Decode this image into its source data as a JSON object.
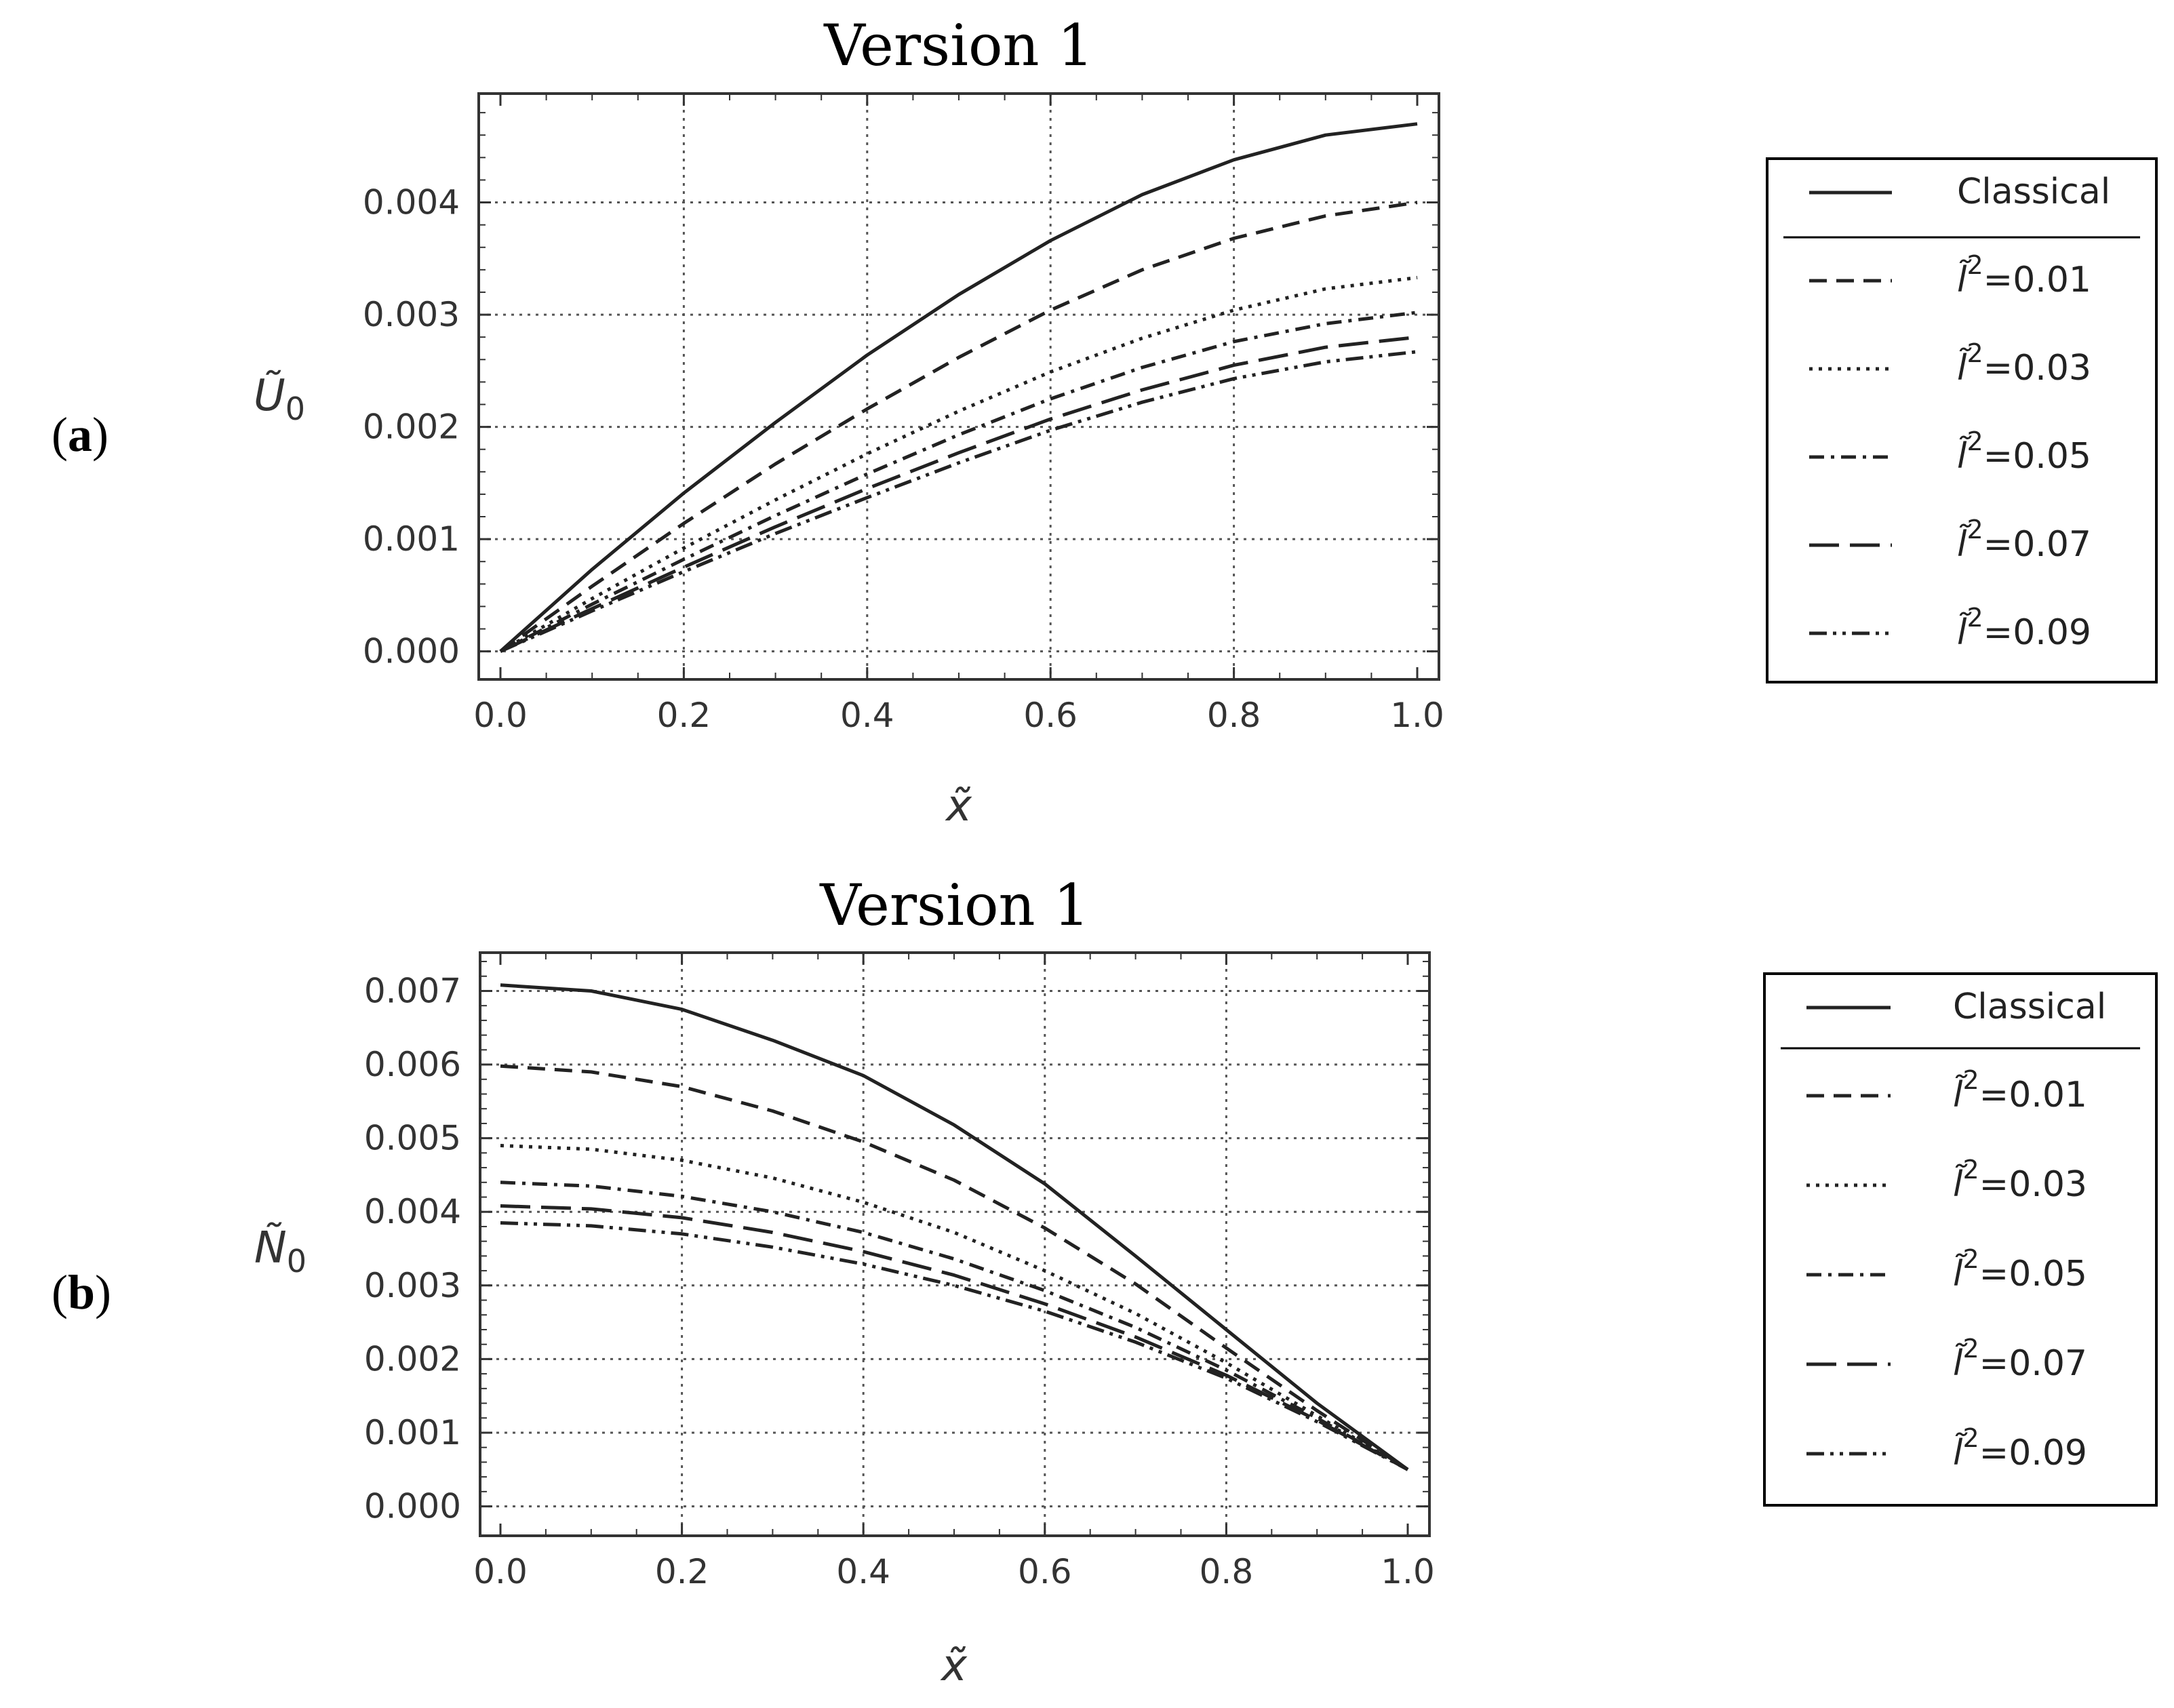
{
  "chart_data": [
    {
      "type": "line",
      "panel_label": "a",
      "title": "Version 1",
      "xlabel": "x̃",
      "ylabel": "Ũ",
      "ylabel_sub": "0",
      "xlim": [
        0.0,
        1.0
      ],
      "ylim": [
        -0.00025,
        0.00497
      ],
      "xticks": [
        "0.0",
        "0.2",
        "0.4",
        "0.6",
        "0.8",
        "1.0"
      ],
      "yticks": [
        "0.000",
        "0.001",
        "0.002",
        "0.003",
        "0.004"
      ],
      "grid": true,
      "legend_position": "right",
      "x": [
        0.0,
        0.1,
        0.2,
        0.3,
        0.4,
        0.5,
        0.6,
        0.7,
        0.8,
        0.9,
        1.0
      ],
      "series": [
        {
          "name": "Classical",
          "label_base": "Classical",
          "label_exp": "",
          "label_suffix": "",
          "style": "solid",
          "values": [
            0.0,
            0.00073,
            0.00141,
            0.00204,
            0.00264,
            0.00318,
            0.00366,
            0.00407,
            0.00438,
            0.0046,
            0.0047
          ]
        },
        {
          "name": "l̃²=0.01",
          "label_base": "l̃",
          "label_exp": "2",
          "label_suffix": "=0.01",
          "style": "dashed",
          "values": [
            0.0,
            0.00058,
            0.00114,
            0.00167,
            0.00216,
            0.00262,
            0.00304,
            0.0034,
            0.00368,
            0.00388,
            0.004
          ]
        },
        {
          "name": "l̃²=0.03",
          "label_base": "l̃",
          "label_exp": "2",
          "label_suffix": "=0.03",
          "style": "dotted",
          "values": [
            0.0,
            0.00047,
            0.00092,
            0.00135,
            0.00176,
            0.00214,
            0.00249,
            0.00279,
            0.00304,
            0.00323,
            0.00333
          ]
        },
        {
          "name": "l̃²=0.05",
          "label_base": "l̃",
          "label_exp": "2",
          "label_suffix": "=0.05",
          "style": "dashdot",
          "values": [
            0.0,
            0.00042,
            0.00082,
            0.00121,
            0.00158,
            0.00193,
            0.00225,
            0.00253,
            0.00276,
            0.00292,
            0.00302
          ]
        },
        {
          "name": "l̃²=0.07",
          "label_base": "l̃",
          "label_exp": "2",
          "label_suffix": "=0.07",
          "style": "longdash",
          "values": [
            0.0,
            0.00038,
            0.00075,
            0.00111,
            0.00145,
            0.00177,
            0.00207,
            0.00233,
            0.00255,
            0.00271,
            0.0028
          ]
        },
        {
          "name": "l̃²=0.09",
          "label_base": "l̃",
          "label_exp": "2",
          "label_suffix": "=0.09",
          "style": "dashdotdot",
          "values": [
            0.0,
            0.00036,
            0.00071,
            0.00105,
            0.00137,
            0.00168,
            0.00197,
            0.00222,
            0.00243,
            0.00258,
            0.00267
          ]
        }
      ]
    },
    {
      "type": "line",
      "panel_label": "b",
      "title": "Version 1",
      "xlabel": "x̃",
      "ylabel": "Ñ",
      "ylabel_sub": "0",
      "xlim": [
        0.0,
        1.0
      ],
      "ylim": [
        -0.0004,
        0.00752
      ],
      "xticks": [
        "0.0",
        "0.2",
        "0.4",
        "0.6",
        "0.8",
        "1.0"
      ],
      "yticks": [
        "0.000",
        "0.001",
        "0.002",
        "0.003",
        "0.004",
        "0.005",
        "0.006",
        "0.007"
      ],
      "grid": true,
      "legend_position": "right",
      "x": [
        0.0,
        0.1,
        0.2,
        0.3,
        0.4,
        0.5,
        0.6,
        0.7,
        0.8,
        0.9,
        1.0
      ],
      "series": [
        {
          "name": "Classical",
          "label_base": "Classical",
          "label_exp": "",
          "label_suffix": "",
          "style": "solid",
          "values": [
            0.00708,
            0.007,
            0.00675,
            0.00633,
            0.00585,
            0.00518,
            0.00438,
            0.0034,
            0.0024,
            0.0014,
            0.0005
          ]
        },
        {
          "name": "l̃²=0.01",
          "label_base": "l̃",
          "label_exp": "2",
          "label_suffix": "=0.01",
          "style": "dashed",
          "values": [
            0.00598,
            0.0059,
            0.0057,
            0.00537,
            0.00495,
            0.00443,
            0.00378,
            0.00302,
            0.00215,
            0.0013,
            0.0005
          ]
        },
        {
          "name": "l̃²=0.03",
          "label_base": "l̃",
          "label_exp": "2",
          "label_suffix": "=0.03",
          "style": "dotted",
          "values": [
            0.0049,
            0.00485,
            0.0047,
            0.00446,
            0.00413,
            0.00372,
            0.0032,
            0.00262,
            0.00195,
            0.00123,
            0.0005
          ]
        },
        {
          "name": "l̃²=0.05",
          "label_base": "l̃",
          "label_exp": "2",
          "label_suffix": "=0.05",
          "style": "dashdot",
          "values": [
            0.0044,
            0.00435,
            0.00421,
            0.004,
            0.00372,
            0.00336,
            0.00293,
            0.00243,
            0.00185,
            0.0012,
            0.0005
          ]
        },
        {
          "name": "l̃²=0.07",
          "label_base": "l̃",
          "label_exp": "2",
          "label_suffix": "=0.07",
          "style": "longdash",
          "values": [
            0.00408,
            0.00404,
            0.00392,
            0.00372,
            0.00346,
            0.00314,
            0.00275,
            0.0023,
            0.00178,
            0.00117,
            0.0005
          ]
        },
        {
          "name": "l̃²=0.09",
          "label_base": "l̃",
          "label_exp": "2",
          "label_suffix": "=0.09",
          "style": "dashdotdot",
          "values": [
            0.00385,
            0.00381,
            0.0037,
            0.00352,
            0.00329,
            0.003,
            0.00265,
            0.00223,
            0.00174,
            0.00115,
            0.0005
          ]
        }
      ]
    }
  ]
}
